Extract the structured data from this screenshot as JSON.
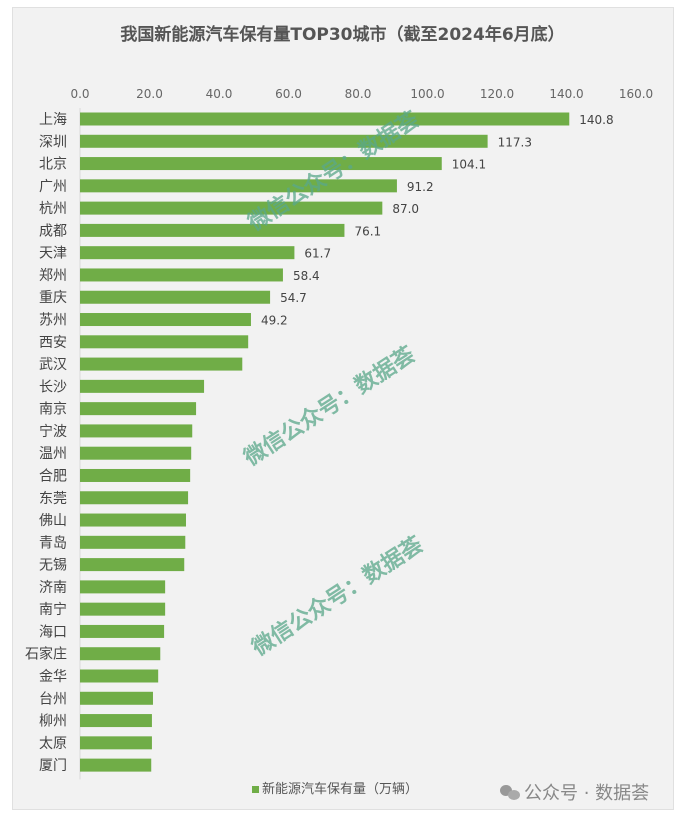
{
  "chart_data": {
    "type": "bar",
    "orientation": "horizontal",
    "title": "我国新能源汽车保有量TOP30城市（截至2024年6月底）",
    "categories": [
      "上海",
      "深圳",
      "北京",
      "广州",
      "杭州",
      "成都",
      "天津",
      "郑州",
      "重庆",
      "苏州",
      "西安",
      "武汉",
      "长沙",
      "南京",
      "宁波",
      "温州",
      "合肥",
      "东莞",
      "佛山",
      "青岛",
      "无锡",
      "济南",
      "南宁",
      "海口",
      "石家庄",
      "金华",
      "台州",
      "柳州",
      "太原",
      "厦门"
    ],
    "series": [
      {
        "name": "新能源汽车保有量（万辆）",
        "values": [
          140.8,
          117.3,
          104.1,
          91.2,
          87.0,
          76.1,
          61.7,
          58.4,
          54.7,
          49.2,
          48.4,
          46.7,
          35.7,
          33.4,
          32.3,
          32.0,
          31.7,
          31.1,
          30.5,
          30.3,
          30.0,
          24.5,
          24.5,
          24.2,
          23.1,
          22.5,
          21.0,
          20.7,
          20.7,
          20.5
        ],
        "data_labels": [
          "140.8",
          "117.3",
          "104.1",
          "91.2",
          "87.0",
          "76.1",
          "61.7",
          "58.4",
          "54.7",
          "49.2",
          "",
          "",
          "",
          "",
          "",
          "",
          "",
          "",
          "",
          "",
          "",
          "",
          "",
          "",
          "",
          "",
          "",
          "",
          "",
          ""
        ],
        "color": "#70ad47"
      }
    ],
    "xlim": [
      0,
      160
    ],
    "x_ticks": [
      "0.0",
      "20.0",
      "40.0",
      "60.0",
      "80.0",
      "100.0",
      "120.0",
      "140.0",
      "160.0"
    ],
    "x_axis_position": "top",
    "grid": false,
    "legend": "bottom"
  },
  "watermarks": [
    "微信公众号：数据荟",
    "微信公众号：数据荟",
    "微信公众号：数据荟"
  ],
  "brand": {
    "icon": "wechat-icon",
    "text": "公众号 · 数据荟"
  }
}
